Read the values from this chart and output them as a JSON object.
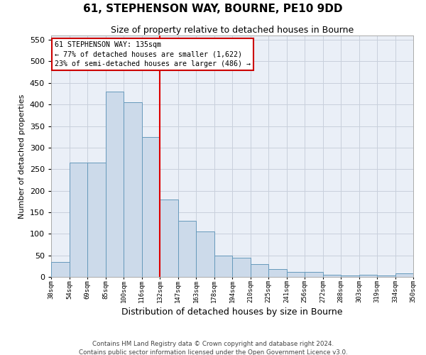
{
  "title": "61, STEPHENSON WAY, BOURNE, PE10 9DD",
  "subtitle": "Size of property relative to detached houses in Bourne",
  "xlabel": "Distribution of detached houses by size in Bourne",
  "ylabel": "Number of detached properties",
  "footer1": "Contains HM Land Registry data © Crown copyright and database right 2024.",
  "footer2": "Contains public sector information licensed under the Open Government Licence v3.0.",
  "categories": [
    "38sqm",
    "54sqm",
    "69sqm",
    "85sqm",
    "100sqm",
    "116sqm",
    "132sqm",
    "147sqm",
    "163sqm",
    "178sqm",
    "194sqm",
    "210sqm",
    "225sqm",
    "241sqm",
    "256sqm",
    "272sqm",
    "288sqm",
    "303sqm",
    "319sqm",
    "334sqm",
    "350sqm"
  ],
  "bar_heights": [
    35,
    265,
    265,
    430,
    405,
    325,
    180,
    130,
    105,
    50,
    45,
    30,
    18,
    12,
    12,
    5,
    3,
    5,
    3,
    8
  ],
  "bar_color": "#ccdaea",
  "bar_edge_color": "#6699bb",
  "bar_linewidth": 0.7,
  "grid_color": "#c8d0dc",
  "bg_color": "#eaeff7",
  "vline_x_index": 6,
  "vline_color": "#dd0000",
  "annotation_line1": "61 STEPHENSON WAY: 135sqm",
  "annotation_line2": "← 77% of detached houses are smaller (1,622)",
  "annotation_line3": "23% of semi-detached houses are larger (486) →",
  "annotation_box_edgecolor": "#cc0000",
  "ylim": [
    0,
    560
  ],
  "yticks": [
    0,
    50,
    100,
    150,
    200,
    250,
    300,
    350,
    400,
    450,
    500,
    550
  ]
}
